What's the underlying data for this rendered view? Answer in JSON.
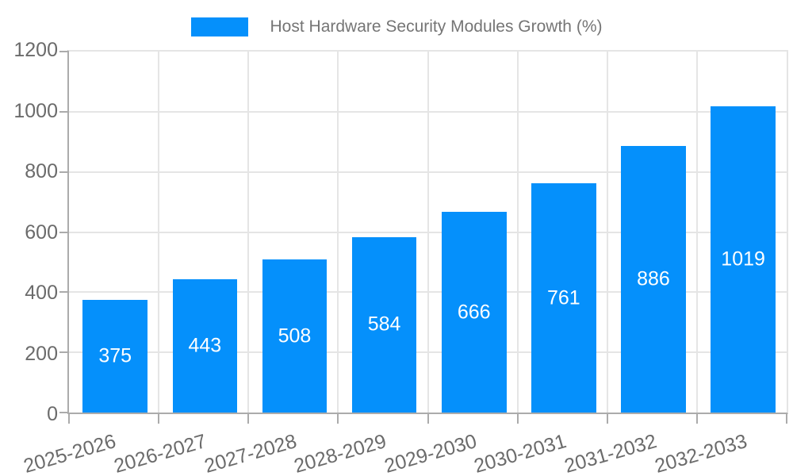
{
  "chart_data": {
    "type": "bar",
    "title": "Host Hardware Security Modules Growth (%)",
    "categories": [
      "2025-2026",
      "2026-2027",
      "2027-2028",
      "2028-2029",
      "2029-2030",
      "2030-2031",
      "2031-2032",
      "2032-2033"
    ],
    "values": [
      375,
      443,
      508,
      584,
      666,
      761,
      886,
      1019
    ],
    "xlabel": "",
    "ylabel": "",
    "ylim": [
      0,
      1200
    ],
    "yticks": [
      0,
      200,
      400,
      600,
      800,
      1000,
      1200
    ],
    "legend_position": "top-center",
    "grid": "horizontal and vertical light gray gridlines",
    "data_labels": "values shown in white, centered inside bars"
  },
  "colors": {
    "bar": "#0590fb",
    "legend_text": "#757575",
    "axis_text": "#6b6b6b",
    "gridline": "#e5e5e5",
    "axis_line": "#ababab",
    "bar_label_text": "#ffffff",
    "background": "#ffffff"
  }
}
